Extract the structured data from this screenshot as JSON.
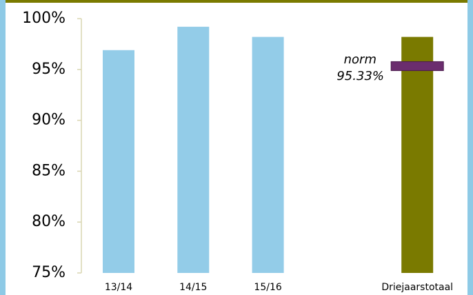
{
  "chart_data": {
    "type": "bar",
    "categories": [
      "13/14",
      "14/15",
      "15/16",
      null,
      "Driejaarstotaal"
    ],
    "values": [
      96.9,
      99.2,
      98.2,
      null,
      98.2
    ],
    "colors": [
      "#93cce8",
      "#93cce8",
      "#93cce8",
      null,
      "#7a7a00"
    ],
    "ylim": [
      75,
      100
    ],
    "yticks": [
      {
        "value": 75,
        "label": "75%"
      },
      {
        "value": 80,
        "label": "80%"
      },
      {
        "value": 85,
        "label": "85%"
      },
      {
        "value": 90,
        "label": "90%"
      },
      {
        "value": 95,
        "label": "95%"
      },
      {
        "value": 100,
        "label": "100%"
      }
    ],
    "grid": false,
    "norm": {
      "label": "norm",
      "value": 95.33,
      "value_label": "95.33%",
      "color": "#6b2d6e"
    }
  }
}
